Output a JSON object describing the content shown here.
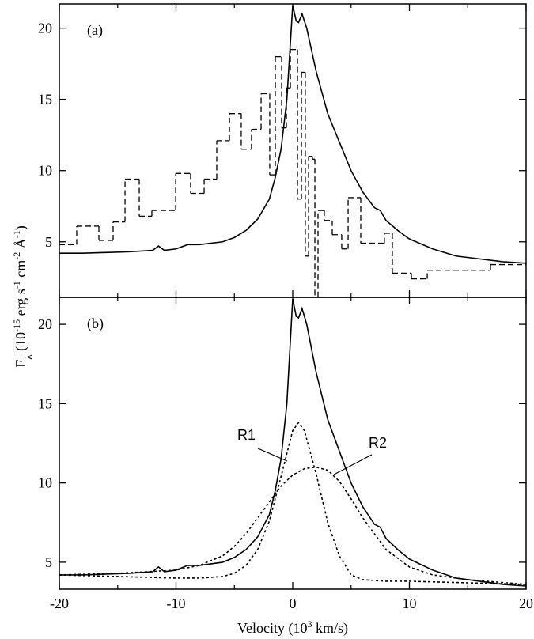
{
  "chart_data": [
    {
      "type": "line",
      "annotations": [
        "(a)"
      ],
      "y_label": [
        {
          "text": "F"
        },
        {
          "text": "λ",
          "shift": "sub"
        },
        {
          "text": " (10"
        },
        {
          "text": "-15",
          "shift": "sup"
        },
        {
          "text": " erg s"
        },
        {
          "text": "-1",
          "shift": "sup"
        },
        {
          "text": " cm"
        },
        {
          "text": "-2",
          "shift": "sup"
        },
        {
          "text": " Å"
        },
        {
          "text": "-1",
          "shift": "sup"
        },
        {
          "text": ")"
        }
      ],
      "xlim": [
        -20,
        20
      ],
      "xticks": [
        -20,
        -10,
        0,
        10,
        20
      ],
      "xminor": [
        -15,
        -5,
        5,
        15
      ],
      "xtick_labels": false,
      "ylim": [
        1.1,
        21.7
      ],
      "yticks": [
        5,
        10,
        15,
        20
      ],
      "series": [
        {
          "style": "line",
          "color": "#000000",
          "x": [
            -20,
            -18,
            -16,
            -14,
            -12,
            -11.5,
            -11,
            -10,
            -9,
            -8,
            -6,
            -5,
            -4,
            -3,
            -2,
            -1.5,
            -1,
            -0.5,
            0,
            0.3,
            0.5,
            0.8,
            1.2,
            2,
            3,
            4,
            5,
            6,
            7,
            7.5,
            8,
            9,
            10,
            12,
            14,
            16,
            18,
            20
          ],
          "values": [
            4.2,
            4.2,
            4.25,
            4.3,
            4.4,
            4.7,
            4.4,
            4.5,
            4.8,
            4.8,
            5.0,
            5.3,
            5.8,
            6.6,
            8.0,
            9.5,
            11.5,
            15,
            21.6,
            20.5,
            20.4,
            21.0,
            20.0,
            17,
            14,
            12,
            10,
            8.5,
            7.4,
            7.2,
            6.5,
            5.8,
            5.2,
            4.5,
            4.0,
            3.8,
            3.6,
            3.5
          ]
        },
        {
          "style": "step",
          "color": "#000000",
          "dash": "7,4",
          "bins": [
            -20,
            -18.51,
            -16.61,
            -15.39,
            -14.37,
            -13.15,
            -12.07,
            -10.03,
            -8.75,
            -7.59,
            -6.51,
            -5.42,
            -4.41,
            -3.53,
            -2.71,
            -1.97,
            -1.49,
            -0.95,
            -0.54,
            -0.2,
            0.41,
            0.75,
            1.08,
            1.36,
            1.69,
            1.9,
            2.17,
            2.71,
            3.39,
            4.2,
            4.75,
            5.83,
            7.86,
            8.54,
            10.17,
            11.53,
            16.95,
            20
          ],
          "values": [
            4.8,
            6.1,
            5.1,
            6.4,
            9.4,
            6.8,
            7.2,
            9.8,
            8.4,
            9.4,
            12.1,
            14.0,
            11.5,
            12.9,
            15.4,
            9.7,
            18.0,
            13.0,
            15.8,
            18.5,
            8.0,
            16.9,
            4.0,
            11.0,
            10.8,
            0.5,
            7.2,
            6.5,
            5.5,
            4.5,
            8.1,
            4.9,
            5.6,
            2.8,
            2.4,
            3.0,
            3.4
          ]
        }
      ]
    },
    {
      "type": "line",
      "annotations": [
        "(b)",
        "R1",
        "R2"
      ],
      "x_label": [
        {
          "text": "Velocity (10"
        },
        {
          "text": "3",
          "shift": "sup"
        },
        {
          "text": " km/s)"
        }
      ],
      "xlim": [
        -20,
        20
      ],
      "xticks": [
        -20,
        -10,
        0,
        10,
        20
      ],
      "xminor": [
        -15,
        -5,
        5,
        15
      ],
      "xtick_labels": true,
      "ylim": [
        3.3,
        21.7
      ],
      "yticks": [
        5,
        10,
        15,
        20
      ],
      "series": [
        {
          "style": "line",
          "color": "#000000",
          "x": [
            -20,
            -18,
            -16,
            -14,
            -12,
            -11.5,
            -11,
            -10,
            -9,
            -8,
            -6,
            -5,
            -4,
            -3,
            -2,
            -1.5,
            -1,
            -0.5,
            0,
            0.3,
            0.5,
            0.8,
            1.2,
            2,
            3,
            4,
            5,
            6,
            7,
            7.5,
            8,
            9,
            10,
            12,
            14,
            16,
            18,
            20
          ],
          "values": [
            4.2,
            4.2,
            4.25,
            4.3,
            4.4,
            4.7,
            4.4,
            4.5,
            4.8,
            4.8,
            5.0,
            5.3,
            5.8,
            6.6,
            8.0,
            9.5,
            11.5,
            15,
            21.6,
            20.5,
            20.4,
            21.0,
            20.0,
            17,
            14,
            12,
            10,
            8.5,
            7.4,
            7.2,
            6.5,
            5.8,
            5.2,
            4.5,
            4.0,
            3.8,
            3.6,
            3.5
          ]
        },
        {
          "style": "line",
          "color": "#000000",
          "dash": "3,3",
          "x": [
            -20,
            -15,
            -10,
            -8,
            -6,
            -5,
            -4,
            -3,
            -2,
            -1,
            0,
            0.5,
            1,
            2,
            3,
            4,
            5,
            6,
            8,
            10,
            15,
            20
          ],
          "values": [
            4.2,
            4.1,
            4.0,
            4.0,
            4.1,
            4.3,
            4.8,
            5.8,
            7.6,
            10.4,
            13.3,
            13.8,
            13.3,
            10.6,
            7.5,
            5.4,
            4.2,
            3.9,
            3.8,
            3.8,
            3.7,
            3.6
          ]
        },
        {
          "style": "line",
          "color": "#000000",
          "dash": "3,3",
          "x": [
            -20,
            -15,
            -10,
            -8,
            -6,
            -5,
            -4,
            -3,
            -2,
            -1,
            0,
            1,
            2,
            3,
            4,
            5,
            6,
            7,
            8,
            10,
            12,
            15,
            20
          ],
          "values": [
            4.2,
            4.3,
            4.5,
            4.8,
            5.4,
            6.0,
            6.8,
            7.8,
            8.8,
            9.8,
            10.5,
            10.9,
            11.0,
            10.8,
            10.1,
            9.0,
            7.8,
            6.8,
            5.8,
            4.7,
            4.2,
            3.9,
            3.6
          ]
        }
      ]
    }
  ]
}
